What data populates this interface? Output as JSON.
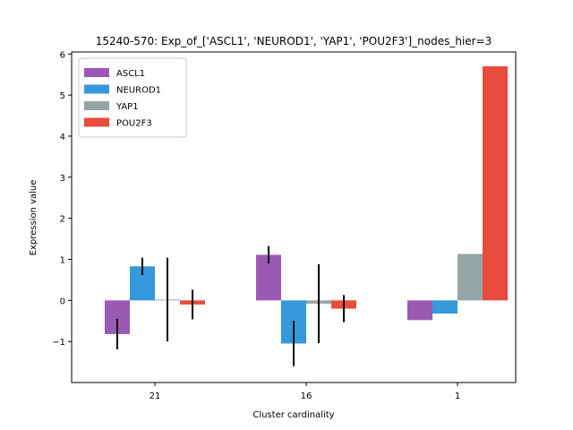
{
  "chart_data": {
    "type": "bar",
    "title": "15240-570: Exp_of_['ASCL1', 'NEUROD1', 'YAP1', 'POU2F3']_nodes_hier=3",
    "xlabel": "Cluster cardinality",
    "ylabel": "Expression value",
    "categories": [
      "21",
      "16",
      "1"
    ],
    "ylim": [
      -2.0,
      6.05
    ],
    "yticks": [
      -1,
      0,
      1,
      2,
      3,
      4,
      5,
      6
    ],
    "grid": false,
    "legend_position": "top-left",
    "series": [
      {
        "name": "ASCL1",
        "color": "#9b59b6",
        "values": [
          -0.82,
          1.11,
          -0.48
        ],
        "errors": [
          0.37,
          0.21,
          null
        ]
      },
      {
        "name": "NEUROD1",
        "color": "#3498db",
        "values": [
          0.83,
          -1.05,
          -0.32
        ],
        "errors": [
          0.21,
          0.55,
          null
        ]
      },
      {
        "name": "YAP1",
        "color": "#95a5a6",
        "values": [
          0.02,
          -0.08,
          1.13
        ],
        "errors": [
          1.02,
          0.96,
          null
        ]
      },
      {
        "name": "POU2F3",
        "color": "#e74c3c",
        "values": [
          -0.1,
          -0.2,
          5.7
        ],
        "errors": [
          0.36,
          0.33,
          null
        ]
      }
    ]
  }
}
